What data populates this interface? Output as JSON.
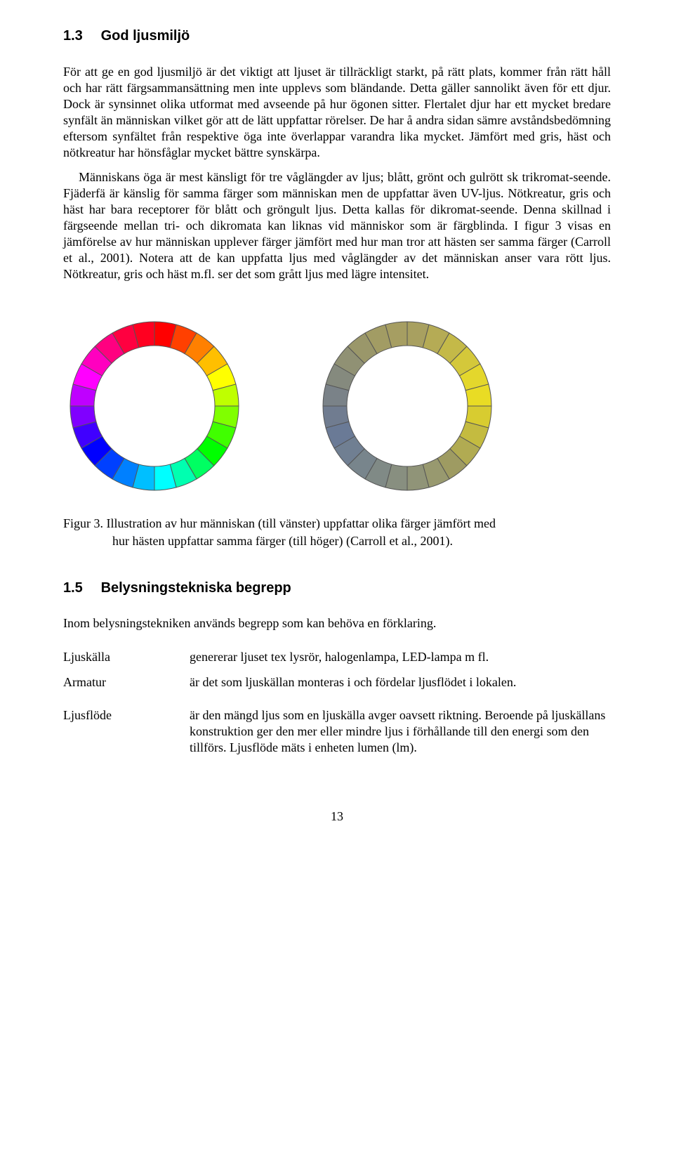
{
  "section13": {
    "number": "1.3",
    "title": "God ljusmiljö",
    "p1": "För att ge en god ljusmiljö är det viktigt att ljuset är tillräckligt starkt, på rätt plats, kommer från rätt håll och har rätt färgsammansättning men inte upplevs som bländande. Detta gäller sannolikt även för ett djur. Dock är synsinnet olika utformat med avseende på hur ögonen sitter. Flertalet djur har ett mycket bredare synfält än människan vilket gör att de lätt uppfattar rörelser. De har å andra sidan sämre avståndsbedömning eftersom synfältet från respektive öga inte överlappar varandra lika mycket. Jämfört med gris, häst och nötkreatur har hönsfåglar mycket bättre synskärpa.",
    "p2": "Människans öga är mest känsligt för tre våglängder av ljus; blått, grönt och gulrött sk trikromat-seende. Fjäderfä är känslig för samma färger som människan men de uppfattar även UV-ljus. Nötkreatur, gris och häst har bara receptorer för blått och gröngult ljus. Detta kallas för dikromat-seende. Denna skillnad i färgseende mellan tri- och dikromata kan liknas vid människor som är färgblinda. I figur 3 visas en jämförelse av hur människan upplever färger jämfört med hur man tror att hästen ser samma färger (Carroll et al., 2001). Notera att de kan uppfatta ljus med våglängder av det människan anser vara rött ljus. Nötkreatur, gris och häst m.fl. ser det som grått ljus med lägre intensitet."
  },
  "figure3": {
    "label": "Figur 3.",
    "caption_line1": "Illustration av hur människan (till vänster) uppfattar olika färger jämfört med",
    "caption_line2": "hur hästen uppfattar samma färger (till höger) (Carroll et al., 2001).",
    "ring": {
      "segments": 24,
      "outer_r": 120,
      "inner_r": 86,
      "stroke": "#555555",
      "stroke_w": 1,
      "bg": "#ffffff",
      "human_colors": [
        "#ff0000",
        "#ff4000",
        "#ff8000",
        "#ffbf00",
        "#ffff00",
        "#bfff00",
        "#80ff00",
        "#40ff00",
        "#00ff00",
        "#00ff62",
        "#00ffb0",
        "#00ffff",
        "#00bfff",
        "#0080ff",
        "#0040ff",
        "#0000ff",
        "#4000ff",
        "#8000ff",
        "#bf00ff",
        "#ff00ff",
        "#ff00bf",
        "#ff0080",
        "#ff0040",
        "#ff0020"
      ],
      "horse_colors": [
        "#a8a060",
        "#b5ab55",
        "#c4b948",
        "#d4c83a",
        "#e4d72c",
        "#e9dc24",
        "#d8cc30",
        "#c4bb40",
        "#b1ab52",
        "#9e9b62",
        "#98996f",
        "#909478",
        "#888f80",
        "#808a86",
        "#78858c",
        "#707f92",
        "#6a7a96",
        "#707c90",
        "#7a8288",
        "#858a7e",
        "#909174",
        "#9a976a",
        "#a29c64",
        "#a69e62"
      ]
    }
  },
  "section15": {
    "number": "1.5",
    "title": "Belysningstekniska begrepp",
    "intro": "Inom belysningstekniken används begrepp som kan behöva en förklaring.",
    "terms": [
      {
        "term": "Ljuskälla",
        "def": "genererar ljuset tex lysrör, halogenlampa, LED-lampa m fl."
      },
      {
        "term": "Armatur",
        "def": "är det som ljuskällan monteras i och fördelar ljusflödet i lokalen."
      },
      {
        "term": "Ljusflöde",
        "def": "är den mängd ljus som en ljuskälla avger oavsett riktning. Beroende på ljuskällans konstruktion ger den mer eller mindre ljus i förhållande till den energi som den tillförs. Ljusflöde mäts i enheten lumen (lm)."
      }
    ]
  },
  "page_number": "13"
}
